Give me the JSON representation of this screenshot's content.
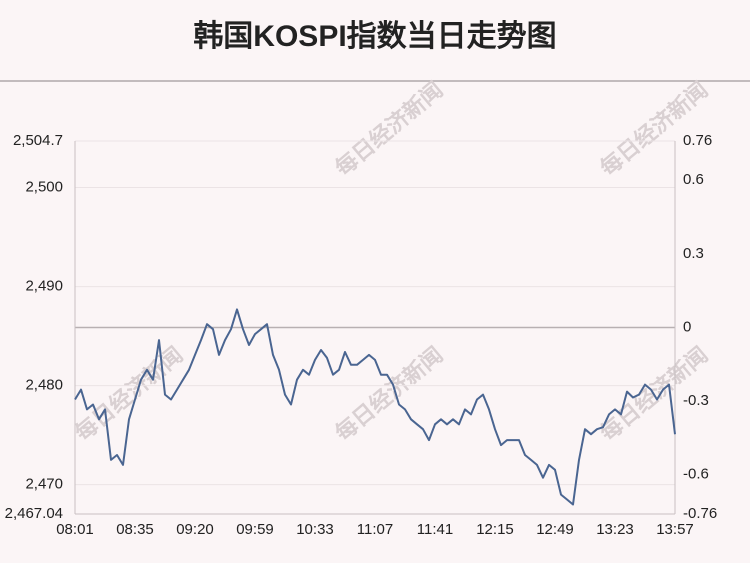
{
  "chart_data": {
    "type": "line",
    "title": "韩国KOSPI指数当日走势图",
    "watermark": "每日经济新闻",
    "categories": [
      "08:01",
      null,
      null,
      null,
      null,
      null,
      null,
      null,
      null,
      null,
      "08:35",
      null,
      null,
      null,
      null,
      null,
      null,
      null,
      null,
      null,
      "09:20",
      null,
      null,
      null,
      null,
      null,
      null,
      null,
      null,
      null,
      "09:59",
      null,
      null,
      null,
      null,
      null,
      null,
      null,
      null,
      null,
      "10:33",
      null,
      null,
      null,
      null,
      null,
      null,
      null,
      null,
      null,
      "11:07",
      null,
      null,
      null,
      null,
      null,
      null,
      null,
      null,
      null,
      "11:41",
      null,
      null,
      null,
      null,
      null,
      null,
      null,
      null,
      null,
      "12:15",
      null,
      null,
      null,
      null,
      null,
      null,
      null,
      null,
      null,
      "12:49",
      null,
      null,
      null,
      null,
      null,
      null,
      null,
      null,
      null,
      "13:23",
      null,
      null,
      null,
      null,
      null,
      null,
      null,
      null,
      null,
      "13:57"
    ],
    "series": [
      {
        "color": "#4a6591",
        "values": [
          2478.6,
          2479.6,
          2477.6,
          2478.1,
          2476.6,
          2477.6,
          2472.5,
          2473,
          2472,
          2476.6,
          2478.6,
          2480.6,
          2481.6,
          2480.6,
          2484.6,
          2479.1,
          2478.6,
          2479.6,
          2480.6,
          2481.6,
          2483.1,
          2484.6,
          2486.2,
          2485.7,
          2483.1,
          2484.6,
          2485.7,
          2487.7,
          2485.7,
          2484.1,
          2485.2,
          2485.7,
          2486.2,
          2483.1,
          2481.6,
          2479.1,
          2478.1,
          2480.6,
          2481.6,
          2481.1,
          2482.6,
          2483.6,
          2482.8,
          2481.1,
          2481.6,
          2483.4,
          2482.1,
          2482.1,
          2482.6,
          2483.1,
          2482.6,
          2481.1,
          2481.1,
          2480.1,
          2478.1,
          2477.6,
          2476.6,
          2476.1,
          2475.6,
          2474.5,
          2476.1,
          2476.6,
          2476.1,
          2476.6,
          2476.1,
          2477.6,
          2477.1,
          2478.6,
          2479.1,
          2477.6,
          2475.6,
          2474,
          2474.5,
          2474.5,
          2474.5,
          2473,
          2472.5,
          2472,
          2470.7,
          2472,
          2471.5,
          2469,
          2468.5,
          2468,
          2472.5,
          2475.6,
          2475.1,
          2475.6,
          2475.8,
          2477.1,
          2477.6,
          2477.1,
          2479.4,
          2478.8,
          2479.1,
          2480.1,
          2479.6,
          2478.6,
          2479.6,
          2480.1,
          2475.1
        ]
      }
    ],
    "ylim": [
      2467.04,
      2504.7
    ],
    "yticks": [
      {
        "value": 2467.04,
        "label": "2,467.04"
      },
      {
        "value": 2470,
        "label": "2,470"
      },
      {
        "value": 2480,
        "label": "2,480"
      },
      {
        "value": 2490,
        "label": "2,490"
      },
      {
        "value": 2500,
        "label": "2,500"
      },
      {
        "value": 2504.7,
        "label": "2,504.7"
      }
    ],
    "y2lim": [
      -0.76,
      0.76
    ],
    "y2ticks": [
      -0.76,
      -0.6,
      -0.3,
      0,
      0.3,
      0.6,
      0.76
    ],
    "grid": true
  }
}
